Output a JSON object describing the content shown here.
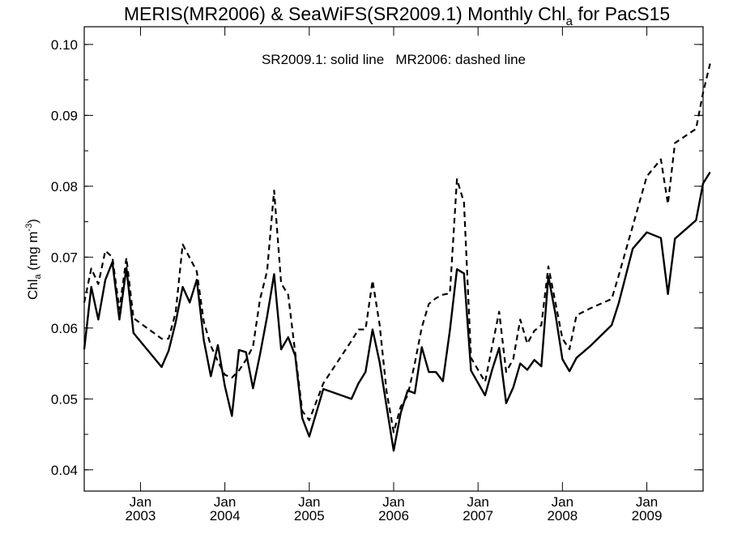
{
  "chart_data": {
    "type": "line",
    "title": {
      "prefix": "MERIS(MR2006) & SeaWiFS(SR2009.1) Monthly Chl",
      "sub": "a",
      "suffix": " for PacS15"
    },
    "annotation": "SR2009.1: solid line   MR2006: dashed line",
    "ylabel": {
      "prefix": "Chl",
      "sub": "a",
      "unit_prefix": " (mg m",
      "unit_sup": "-3",
      "unit_suffix": ")"
    },
    "xlim": [
      "2002-05",
      "2009-09"
    ],
    "ylim": [
      0.037,
      0.1025
    ],
    "yticks": [
      0.04,
      0.05,
      0.06,
      0.07,
      0.08,
      0.09,
      0.1
    ],
    "yticklabels": [
      "0.04",
      "0.05",
      "0.06",
      "0.07",
      "0.08",
      "0.09",
      "0.10"
    ],
    "xticks": [
      {
        "month": "2003-01",
        "line1": "Jan",
        "line2": "2003"
      },
      {
        "month": "2004-01",
        "line1": "Jan",
        "line2": "2004"
      },
      {
        "month": "2005-01",
        "line1": "Jan",
        "line2": "2005"
      },
      {
        "month": "2006-01",
        "line1": "Jan",
        "line2": "2006"
      },
      {
        "month": "2007-01",
        "line1": "Jan",
        "line2": "2007"
      },
      {
        "month": "2008-01",
        "line1": "Jan",
        "line2": "2008"
      },
      {
        "month": "2009-01",
        "line1": "Jan",
        "line2": "2009"
      }
    ],
    "grid": false,
    "series": [
      {
        "style": "solid",
        "points": [
          [
            "2002-05",
            0.057
          ],
          [
            "2002-06",
            0.0658
          ],
          [
            "2002-07",
            0.0612
          ],
          [
            "2002-08",
            0.0668
          ],
          [
            "2002-09",
            0.0693
          ],
          [
            "2002-10",
            0.0612
          ],
          [
            "2002-11",
            0.0685
          ],
          [
            "2002-12",
            0.0593
          ],
          [
            "2003-04",
            0.0545
          ],
          [
            "2003-05",
            0.0568
          ],
          [
            "2003-06",
            0.0608
          ],
          [
            "2003-07",
            0.0658
          ],
          [
            "2003-08",
            0.0636
          ],
          [
            "2003-09",
            0.0668
          ],
          [
            "2003-10",
            0.0583
          ],
          [
            "2003-11",
            0.0532
          ],
          [
            "2003-12",
            0.0576
          ],
          [
            "2004-01",
            0.0518
          ],
          [
            "2004-02",
            0.0476
          ],
          [
            "2004-03",
            0.0569
          ],
          [
            "2004-04",
            0.0566
          ],
          [
            "2004-05",
            0.0515
          ],
          [
            "2004-06",
            0.0563
          ],
          [
            "2004-07",
            0.0616
          ],
          [
            "2004-08",
            0.0676
          ],
          [
            "2004-09",
            0.057
          ],
          [
            "2004-10",
            0.0587
          ],
          [
            "2004-11",
            0.0561
          ],
          [
            "2004-12",
            0.0473
          ],
          [
            "2005-01",
            0.0447
          ],
          [
            "2005-03",
            0.0514
          ],
          [
            "2005-07",
            0.05
          ],
          [
            "2005-08",
            0.0522
          ],
          [
            "2005-09",
            0.0538
          ],
          [
            "2005-10",
            0.0598
          ],
          [
            "2005-11",
            0.0552
          ],
          [
            "2005-12",
            0.0489
          ],
          [
            "2006-01",
            0.0427
          ],
          [
            "2006-02",
            0.048
          ],
          [
            "2006-03",
            0.0512
          ],
          [
            "2006-04",
            0.0508
          ],
          [
            "2006-05",
            0.0573
          ],
          [
            "2006-06",
            0.0538
          ],
          [
            "2006-07",
            0.0538
          ],
          [
            "2006-08",
            0.0525
          ],
          [
            "2006-09",
            0.0597
          ],
          [
            "2006-10",
            0.0683
          ],
          [
            "2006-11",
            0.0677
          ],
          [
            "2006-12",
            0.054
          ],
          [
            "2007-02",
            0.0505
          ],
          [
            "2007-03",
            0.0541
          ],
          [
            "2007-04",
            0.0572
          ],
          [
            "2007-05",
            0.0494
          ],
          [
            "2007-06",
            0.0516
          ],
          [
            "2007-07",
            0.055
          ],
          [
            "2007-08",
            0.0541
          ],
          [
            "2007-09",
            0.0555
          ],
          [
            "2007-10",
            0.0546
          ],
          [
            "2007-11",
            0.0673
          ],
          [
            "2007-12",
            0.062
          ],
          [
            "2008-01",
            0.0556
          ],
          [
            "2008-02",
            0.0539
          ],
          [
            "2008-03",
            0.0558
          ],
          [
            "2008-05",
            0.0575
          ],
          [
            "2008-08",
            0.0604
          ],
          [
            "2008-09",
            0.0635
          ],
          [
            "2008-11",
            0.0712
          ],
          [
            "2009-01",
            0.0735
          ],
          [
            "2009-03",
            0.0727
          ],
          [
            "2009-04",
            0.0648
          ],
          [
            "2009-05",
            0.0726
          ],
          [
            "2009-08",
            0.0752
          ],
          [
            "2009-09",
            0.0804
          ],
          [
            "2009-10",
            0.082
          ]
        ]
      },
      {
        "style": "dashed",
        "points": [
          [
            "2002-05",
            0.0636
          ],
          [
            "2002-06",
            0.0684
          ],
          [
            "2002-07",
            0.0662
          ],
          [
            "2002-08",
            0.0709
          ],
          [
            "2002-09",
            0.07
          ],
          [
            "2002-10",
            0.0626
          ],
          [
            "2002-11",
            0.0699
          ],
          [
            "2002-12",
            0.0614
          ],
          [
            "2003-04",
            0.0585
          ],
          [
            "2003-05",
            0.0585
          ],
          [
            "2003-06",
            0.0622
          ],
          [
            "2003-07",
            0.0718
          ],
          [
            "2003-08",
            0.0699
          ],
          [
            "2003-09",
            0.068
          ],
          [
            "2003-10",
            0.0609
          ],
          [
            "2003-11",
            0.0575
          ],
          [
            "2003-12",
            0.0553
          ],
          [
            "2004-01",
            0.0534
          ],
          [
            "2004-02",
            0.053
          ],
          [
            "2004-03",
            0.054
          ],
          [
            "2004-04",
            0.0555
          ],
          [
            "2004-05",
            0.0574
          ],
          [
            "2004-06",
            0.0641
          ],
          [
            "2004-07",
            0.068
          ],
          [
            "2004-08",
            0.0794
          ],
          [
            "2004-09",
            0.0663
          ],
          [
            "2004-10",
            0.0647
          ],
          [
            "2004-11",
            0.0565
          ],
          [
            "2004-12",
            0.0483
          ],
          [
            "2005-01",
            0.047
          ],
          [
            "2005-03",
            0.0522
          ],
          [
            "2005-07",
            0.0582
          ],
          [
            "2005-08",
            0.0598
          ],
          [
            "2005-09",
            0.0598
          ],
          [
            "2005-10",
            0.0667
          ],
          [
            "2005-11",
            0.0605
          ],
          [
            "2005-12",
            0.051
          ],
          [
            "2006-01",
            0.0453
          ],
          [
            "2006-02",
            0.0489
          ],
          [
            "2006-03",
            0.0505
          ],
          [
            "2006-04",
            0.055
          ],
          [
            "2006-05",
            0.0601
          ],
          [
            "2006-06",
            0.0634
          ],
          [
            "2006-07",
            0.0642
          ],
          [
            "2006-08",
            0.0647
          ],
          [
            "2006-09",
            0.0649
          ],
          [
            "2006-10",
            0.081
          ],
          [
            "2006-11",
            0.0777
          ],
          [
            "2006-12",
            0.0558
          ],
          [
            "2007-02",
            0.0524
          ],
          [
            "2007-03",
            0.0574
          ],
          [
            "2007-04",
            0.0623
          ],
          [
            "2007-05",
            0.0538
          ],
          [
            "2007-06",
            0.0556
          ],
          [
            "2007-07",
            0.0612
          ],
          [
            "2007-08",
            0.0578
          ],
          [
            "2007-09",
            0.0596
          ],
          [
            "2007-10",
            0.0604
          ],
          [
            "2007-11",
            0.0687
          ],
          [
            "2007-12",
            0.0636
          ],
          [
            "2008-01",
            0.0585
          ],
          [
            "2008-02",
            0.057
          ],
          [
            "2008-03",
            0.0618
          ],
          [
            "2008-05",
            0.0628
          ],
          [
            "2008-08",
            0.0641
          ],
          [
            "2008-09",
            0.0674
          ],
          [
            "2008-11",
            0.0744
          ],
          [
            "2009-01",
            0.0814
          ],
          [
            "2009-03",
            0.0838
          ],
          [
            "2009-04",
            0.0775
          ],
          [
            "2009-05",
            0.0861
          ],
          [
            "2009-08",
            0.0881
          ],
          [
            "2009-09",
            0.0932
          ],
          [
            "2009-10",
            0.0973
          ]
        ]
      }
    ]
  }
}
